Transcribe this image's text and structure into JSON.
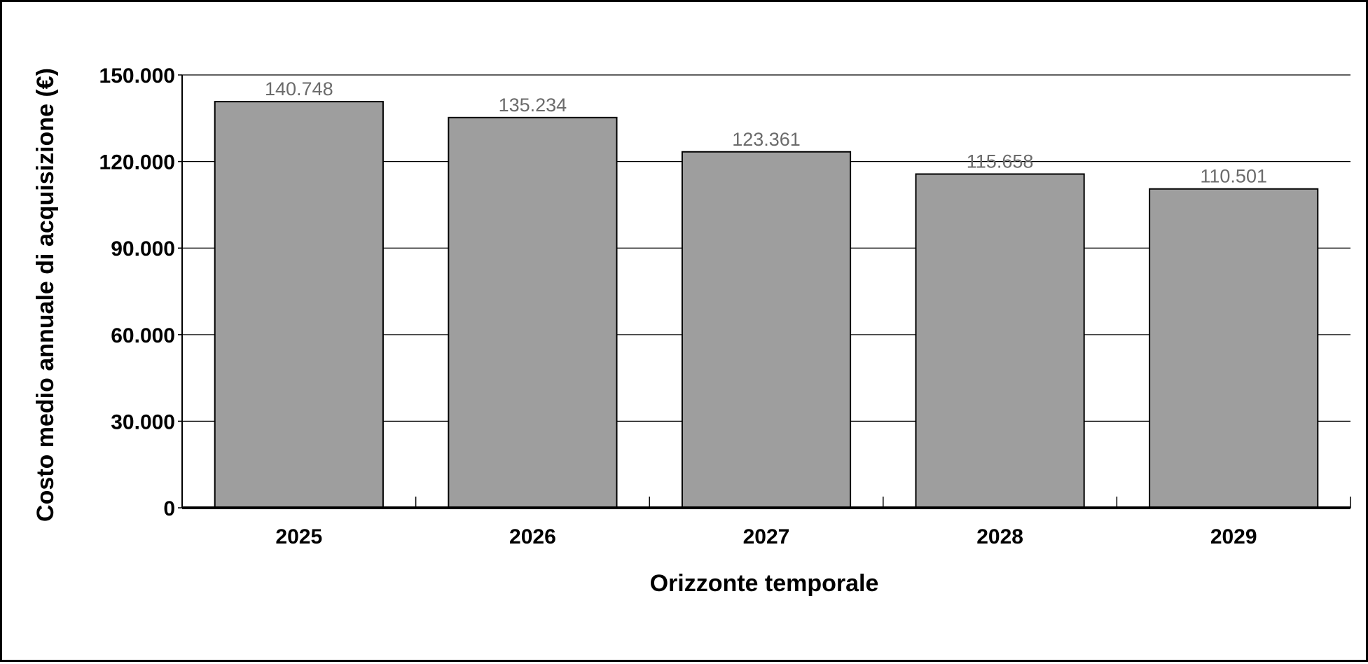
{
  "chart_data": {
    "type": "bar",
    "categories": [
      "2025",
      "2026",
      "2027",
      "2028",
      "2029"
    ],
    "series": [
      {
        "values": [
          140748,
          135234,
          123361,
          115658,
          110501
        ],
        "value_labels": [
          "140.748",
          "135.234",
          "123.361",
          "115.658",
          "110.501"
        ],
        "color": "#9e9e9e"
      }
    ],
    "title": "",
    "xlabel": "Orizzonte temporale",
    "ylabel": "Costo medio annuale di acquisizione (€)",
    "ylim": [
      0,
      150000
    ],
    "yticks": [
      0,
      30000,
      60000,
      90000,
      120000,
      150000
    ],
    "ytick_labels": [
      "0",
      "30.000",
      "60.000",
      "90.000",
      "120.000",
      "150.000"
    ],
    "grid": true,
    "legend": "none",
    "colors": {
      "bar_fill": "#9e9e9e",
      "bar_stroke": "#000000",
      "grid": "#000000",
      "data_label": "#6b6b6b"
    }
  }
}
